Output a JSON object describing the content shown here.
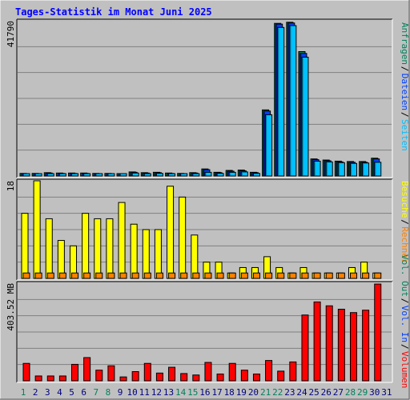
{
  "title": "Tages-Statistik im Monat Juni 2025",
  "colors": {
    "background": "#c0c0c0",
    "title": "#0000ff",
    "hits": "#00805c",
    "files": "#0040ff",
    "pages": "#00c0ff",
    "visits": "#ffff00",
    "sites": "#ff8000",
    "kbytes": "#ff0000",
    "kbytes_in": "#0040ff",
    "kbytes_out": "#00805c",
    "weekend_day": "#00805c",
    "weekday_day": "#000080"
  },
  "days": [
    "1",
    "2",
    "3",
    "4",
    "5",
    "6",
    "7",
    "8",
    "9",
    "10",
    "11",
    "12",
    "13",
    "14",
    "15",
    "16",
    "17",
    "18",
    "19",
    "20",
    "21",
    "22",
    "23",
    "24",
    "25",
    "26",
    "27",
    "28",
    "29",
    "30",
    "31"
  ],
  "weekend_days": [
    1,
    7,
    8,
    14,
    15,
    21,
    22,
    28,
    29
  ],
  "side_labels": {
    "top": [
      {
        "key": "hits",
        "text": "Anfragen"
      },
      {
        "key": "files",
        "text": "Dateien"
      },
      {
        "key": "pages",
        "text": "Seiten"
      }
    ],
    "mid": [
      {
        "key": "visits",
        "text": "Besuche"
      },
      {
        "key": "sites",
        "text": "Rechner"
      }
    ],
    "bot": [
      {
        "key": "kbytes_out",
        "text": "Vol. Out"
      },
      {
        "key": "kbytes_in",
        "text": "Vol. In"
      },
      {
        "key": "kbytes",
        "text": "Volumen"
      }
    ]
  },
  "chart_data": [
    {
      "type": "bar",
      "panel": "top",
      "ymax_label": "41790",
      "ylim": [
        0,
        41790
      ],
      "categories": [
        "1",
        "2",
        "3",
        "4",
        "5",
        "6",
        "7",
        "8",
        "9",
        "10",
        "11",
        "12",
        "13",
        "14",
        "15",
        "16",
        "17",
        "18",
        "19",
        "20",
        "21",
        "22",
        "23",
        "24",
        "25",
        "26",
        "27",
        "28",
        "29",
        "30"
      ],
      "series": [
        {
          "name": "Anfragen",
          "values": [
            700,
            700,
            900,
            800,
            800,
            800,
            700,
            700,
            600,
            1100,
            900,
            1000,
            800,
            700,
            900,
            1900,
            1000,
            1500,
            1600,
            1000,
            17800,
            41100,
            41400,
            33500,
            4600,
            4300,
            4000,
            3900,
            3900,
            4800
          ]
        },
        {
          "name": "Dateien",
          "values": [
            600,
            600,
            800,
            700,
            700,
            700,
            600,
            600,
            500,
            1000,
            800,
            900,
            700,
            600,
            800,
            1700,
            900,
            1300,
            1400,
            900,
            17500,
            40900,
            41200,
            33000,
            4400,
            4100,
            3800,
            3700,
            3700,
            4600
          ]
        },
        {
          "name": "Seiten",
          "values": [
            500,
            400,
            600,
            500,
            500,
            500,
            400,
            400,
            300,
            800,
            600,
            700,
            500,
            400,
            600,
            1000,
            700,
            1000,
            1100,
            700,
            16500,
            40000,
            40500,
            32000,
            4000,
            3800,
            3600,
            3400,
            3500,
            3700
          ]
        }
      ]
    },
    {
      "type": "bar",
      "panel": "middle",
      "ymax_label": "18",
      "ylim": [
        0,
        18
      ],
      "categories": [
        "1",
        "2",
        "3",
        "4",
        "5",
        "6",
        "7",
        "8",
        "9",
        "10",
        "11",
        "12",
        "13",
        "14",
        "15",
        "16",
        "17",
        "18",
        "19",
        "20",
        "21",
        "22",
        "23",
        "24",
        "25",
        "26",
        "27",
        "28",
        "29",
        "30"
      ],
      "series": [
        {
          "name": "Besuche",
          "values": [
            12,
            18,
            11,
            7,
            6,
            12,
            11,
            11,
            14,
            10,
            9,
            9,
            17,
            15,
            8,
            3,
            3,
            1,
            2,
            2,
            4,
            2,
            1,
            2,
            1,
            1,
            1,
            2,
            3,
            1
          ]
        },
        {
          "name": "Rechner",
          "values": [
            1,
            1,
            1,
            1,
            1,
            1,
            1,
            1,
            1,
            1,
            1,
            1,
            1,
            1,
            1,
            1,
            1,
            1,
            1,
            1,
            1,
            1,
            1,
            1,
            1,
            1,
            1,
            1,
            1,
            1
          ]
        }
      ]
    },
    {
      "type": "bar",
      "panel": "bottom",
      "ymax_label": "403.52 MB",
      "ylim": [
        0,
        403.52
      ],
      "categories": [
        "1",
        "2",
        "3",
        "4",
        "5",
        "6",
        "7",
        "8",
        "9",
        "10",
        "11",
        "12",
        "13",
        "14",
        "15",
        "16",
        "17",
        "18",
        "19",
        "20",
        "21",
        "22",
        "23",
        "24",
        "25",
        "26",
        "27",
        "28",
        "29",
        "30"
      ],
      "series": [
        {
          "name": "Volumen",
          "values": [
            72,
            20,
            20,
            20,
            68,
            96,
            44,
            62,
            16,
            38,
            72,
            32,
            56,
            30,
            24,
            76,
            28,
            72,
            44,
            28,
            84,
            40,
            78,
            272,
            326,
            310,
            296,
            282,
            292,
            400
          ]
        },
        {
          "name": "Vol. In",
          "values": [
            0,
            0,
            0,
            0,
            0,
            0,
            0,
            0,
            0,
            0,
            0,
            0,
            0,
            0,
            0,
            0,
            0,
            0,
            0,
            0,
            0,
            0,
            0,
            0,
            0,
            0,
            0,
            0,
            0,
            0
          ]
        },
        {
          "name": "Vol. Out",
          "values": [
            0,
            0,
            0,
            0,
            0,
            0,
            0,
            0,
            0,
            0,
            0,
            0,
            0,
            0,
            0,
            0,
            0,
            0,
            0,
            0,
            0,
            0,
            0,
            0,
            0,
            0,
            0,
            0,
            0,
            0
          ]
        }
      ]
    }
  ]
}
